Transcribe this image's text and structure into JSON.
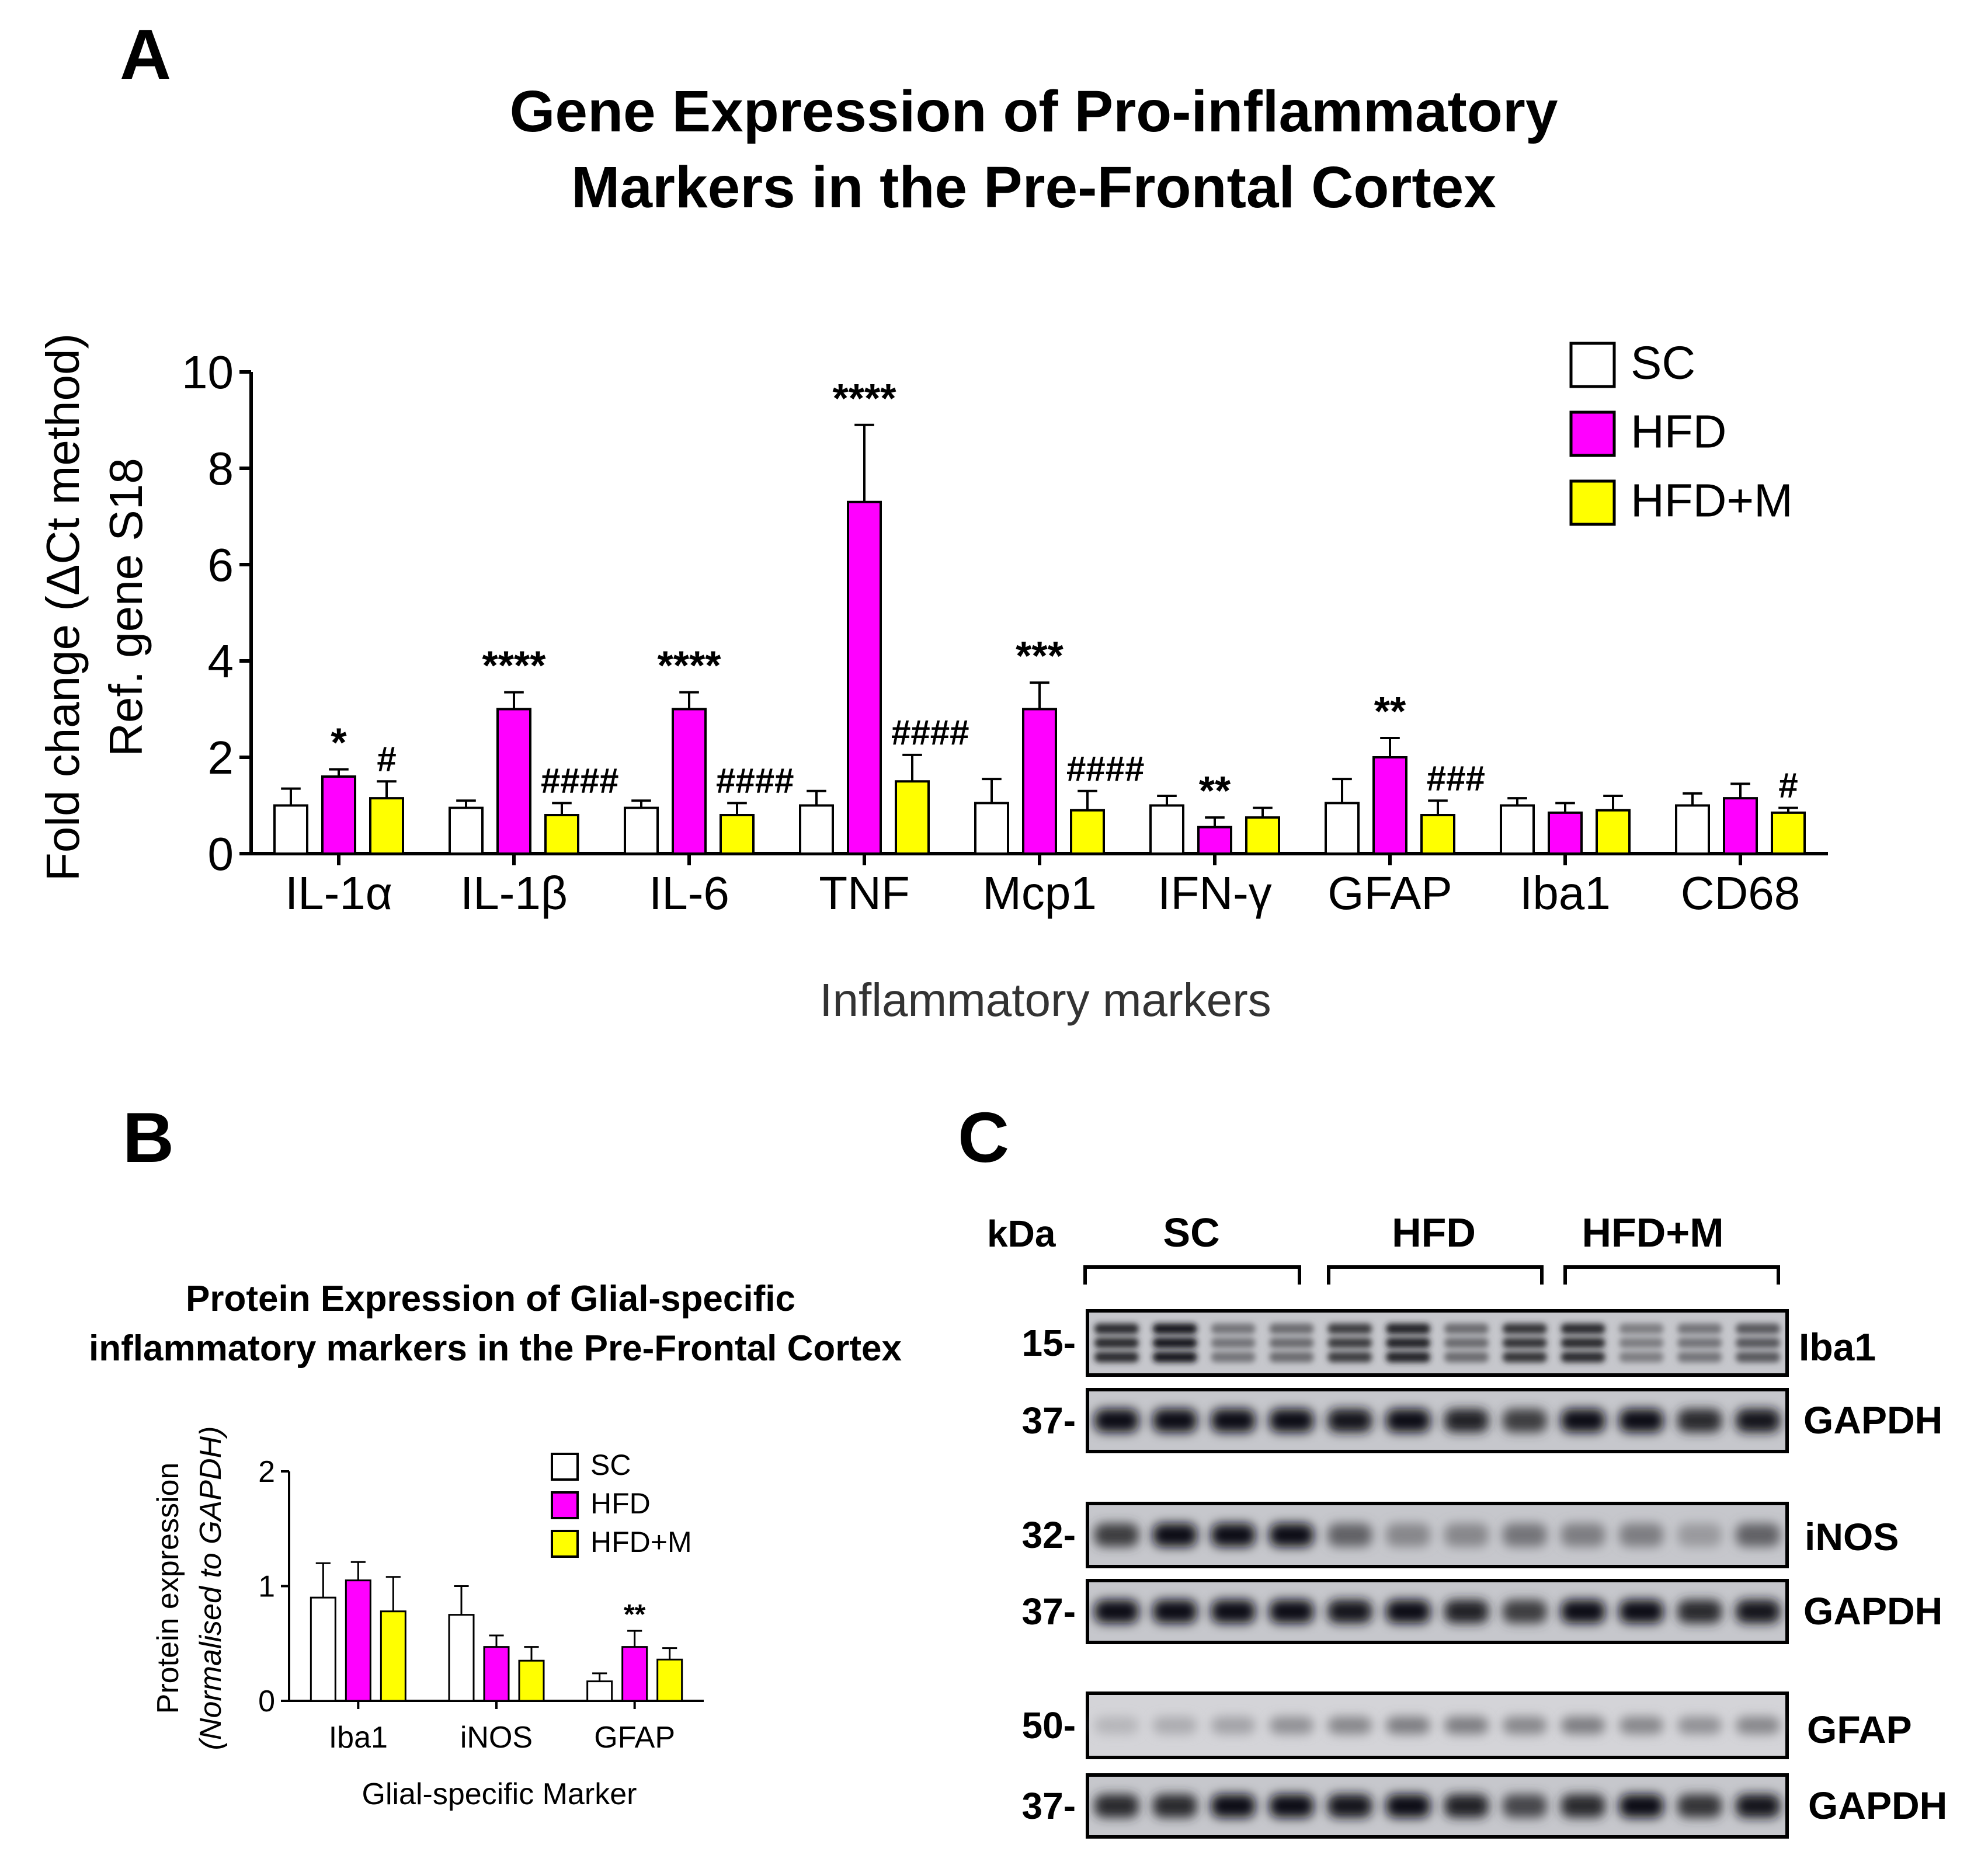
{
  "panel_labels": {
    "a": "A",
    "b": "B",
    "c": "C"
  },
  "colors": {
    "SC": "#ffffff",
    "HFD": "#ff00ff",
    "HFD+M": "#ffff00"
  },
  "chart_data": [
    {
      "type": "bar",
      "id": "A",
      "title_lines": [
        "Gene Expression of Pro-inflammatory",
        "Markers in the Pre-Frontal Cortex"
      ],
      "ylabel_lines": [
        "Fold change (ΔCt  method)",
        "Ref. gene S18"
      ],
      "xlabel": "Inflammatory markers",
      "categories": [
        "IL-1α",
        "IL-1β",
        "IL-6",
        "TNF",
        "Mcp1",
        "IFN-γ",
        "GFAP",
        "Iba1",
        "CD68"
      ],
      "ylim": [
        0,
        10
      ],
      "yticks": [
        "0",
        "2",
        "4",
        "6",
        "8",
        "10"
      ],
      "legend_position": "top-right",
      "series": [
        {
          "name": "SC",
          "values": [
            1.0,
            0.95,
            0.95,
            1.0,
            1.05,
            1.0,
            1.05,
            1.0,
            1.0
          ],
          "errors": [
            0.35,
            0.15,
            0.15,
            0.3,
            0.5,
            0.2,
            0.5,
            0.15,
            0.25
          ]
        },
        {
          "name": "HFD",
          "values": [
            1.6,
            3.0,
            3.0,
            7.3,
            3.0,
            0.55,
            2.0,
            0.85,
            1.15
          ],
          "errors": [
            0.15,
            0.35,
            0.35,
            1.6,
            0.55,
            0.2,
            0.4,
            0.2,
            0.3
          ]
        },
        {
          "name": "HFD+M",
          "values": [
            1.15,
            0.8,
            0.8,
            1.5,
            0.9,
            0.75,
            0.8,
            0.9,
            0.85
          ],
          "errors": [
            0.35,
            0.25,
            0.25,
            0.55,
            0.4,
            0.2,
            0.3,
            0.3,
            0.1
          ]
        }
      ],
      "annotations": [
        {
          "category": 0,
          "series": 1,
          "text": "*"
        },
        {
          "category": 0,
          "series": 2,
          "text": "#"
        },
        {
          "category": 1,
          "series": 1,
          "text": "****"
        },
        {
          "category": 1,
          "series": 2,
          "text": "####"
        },
        {
          "category": 2,
          "series": 1,
          "text": "****"
        },
        {
          "category": 2,
          "series": 2,
          "text": "####"
        },
        {
          "category": 3,
          "series": 1,
          "text": "****"
        },
        {
          "category": 3,
          "series": 2,
          "text": "####"
        },
        {
          "category": 4,
          "series": 1,
          "text": "***"
        },
        {
          "category": 4,
          "series": 2,
          "text": "####"
        },
        {
          "category": 5,
          "series": 1,
          "text": "**"
        },
        {
          "category": 6,
          "series": 1,
          "text": "**"
        },
        {
          "category": 6,
          "series": 2,
          "text": "###"
        },
        {
          "category": 8,
          "series": 2,
          "text": "#"
        }
      ]
    },
    {
      "type": "bar",
      "id": "B",
      "title_lines": [
        "Protein Expression of Glial-specific",
        "inflammatory markers in the Pre-Frontal Cortex"
      ],
      "ylabel_lines": [
        "Protein expression",
        "(Normalised to GAPDH)"
      ],
      "xlabel": "Glial-specific Marker",
      "categories": [
        "Iba1",
        "iNOS",
        "GFAP"
      ],
      "ylim": [
        0,
        2
      ],
      "yticks": [
        "0",
        "1",
        "2"
      ],
      "legend_position": "top-right",
      "series": [
        {
          "name": "SC",
          "values": [
            0.9,
            0.75,
            0.17
          ],
          "errors": [
            0.3,
            0.25,
            0.07
          ]
        },
        {
          "name": "HFD",
          "values": [
            1.05,
            0.47,
            0.47
          ],
          "errors": [
            0.16,
            0.1,
            0.14
          ]
        },
        {
          "name": "HFD+M",
          "values": [
            0.78,
            0.35,
            0.36
          ],
          "errors": [
            0.3,
            0.12,
            0.1
          ]
        }
      ],
      "annotations": [
        {
          "category": 2,
          "series": 1,
          "text": "**"
        }
      ]
    }
  ],
  "blot": {
    "kda_label": "kDa",
    "groups": [
      "SC",
      "HFD",
      "HFD+M"
    ],
    "rows": [
      {
        "marker": "15-",
        "protein": "Iba1",
        "kind": "iba1",
        "intensity": [
          0.85,
          0.95,
          0.45,
          0.5,
          0.75,
          0.9,
          0.5,
          0.8,
          0.85,
          0.4,
          0.45,
          0.6
        ]
      },
      {
        "marker": "37-",
        "protein": "GAPDH",
        "kind": "gapdh",
        "intensity": [
          1.0,
          1.0,
          1.0,
          1.0,
          0.95,
          1.0,
          0.9,
          0.75,
          1.0,
          1.0,
          0.85,
          0.95
        ]
      },
      {
        "marker": "32-",
        "protein": "iNOS",
        "kind": "inos",
        "intensity": [
          0.75,
          1.0,
          1.0,
          1.0,
          0.55,
          0.35,
          0.35,
          0.45,
          0.4,
          0.4,
          0.25,
          0.55
        ]
      },
      {
        "marker": "37-",
        "protein": "GAPDH",
        "kind": "gapdh",
        "intensity": [
          1.0,
          1.0,
          1.0,
          1.0,
          0.95,
          1.0,
          0.9,
          0.75,
          1.0,
          1.0,
          0.85,
          0.95
        ]
      },
      {
        "marker": "50-",
        "protein": "GFAP",
        "kind": "gfap",
        "intensity": [
          0.1,
          0.15,
          0.2,
          0.3,
          0.35,
          0.4,
          0.4,
          0.35,
          0.4,
          0.35,
          0.3,
          0.35
        ]
      },
      {
        "marker": "37-",
        "protein": "GAPDH",
        "kind": "gapdh",
        "intensity": [
          0.85,
          0.85,
          1.0,
          1.0,
          0.95,
          1.0,
          0.9,
          0.7,
          0.85,
          1.0,
          0.8,
          0.95
        ]
      }
    ]
  }
}
